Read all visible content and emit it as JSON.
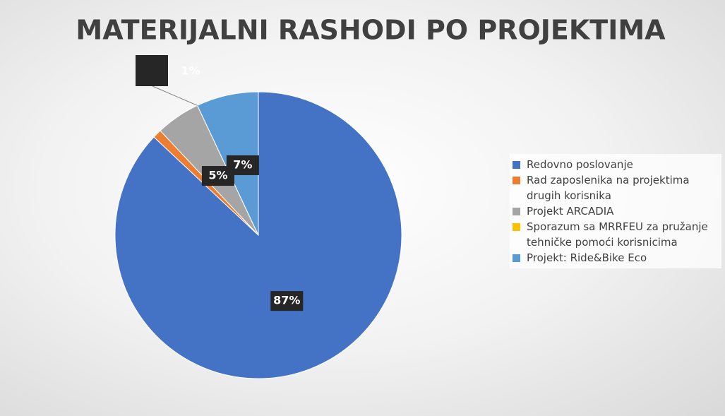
{
  "chart_data": {
    "type": "pie",
    "title": "MATERIJALNI RASHODI PO PROJEKTIMA",
    "categories": [
      "Redovno poslovanje",
      "Rad zaposlenika na projektima drugih korisnika",
      "Projekt ARCADIA",
      "Sporazum sa MRRFEU za pružanje tehničke pomoći korisnicima",
      "Projekt: Ride&Bike Eco"
    ],
    "values": [
      87,
      1,
      5,
      0,
      7
    ],
    "value_labels": [
      "87%",
      "1%",
      "5%",
      null,
      "7%"
    ],
    "colors": [
      "#4472c4",
      "#ed7d31",
      "#a5a5a5",
      "#ffc000",
      "#5b9bd5"
    ],
    "legend": "right"
  }
}
